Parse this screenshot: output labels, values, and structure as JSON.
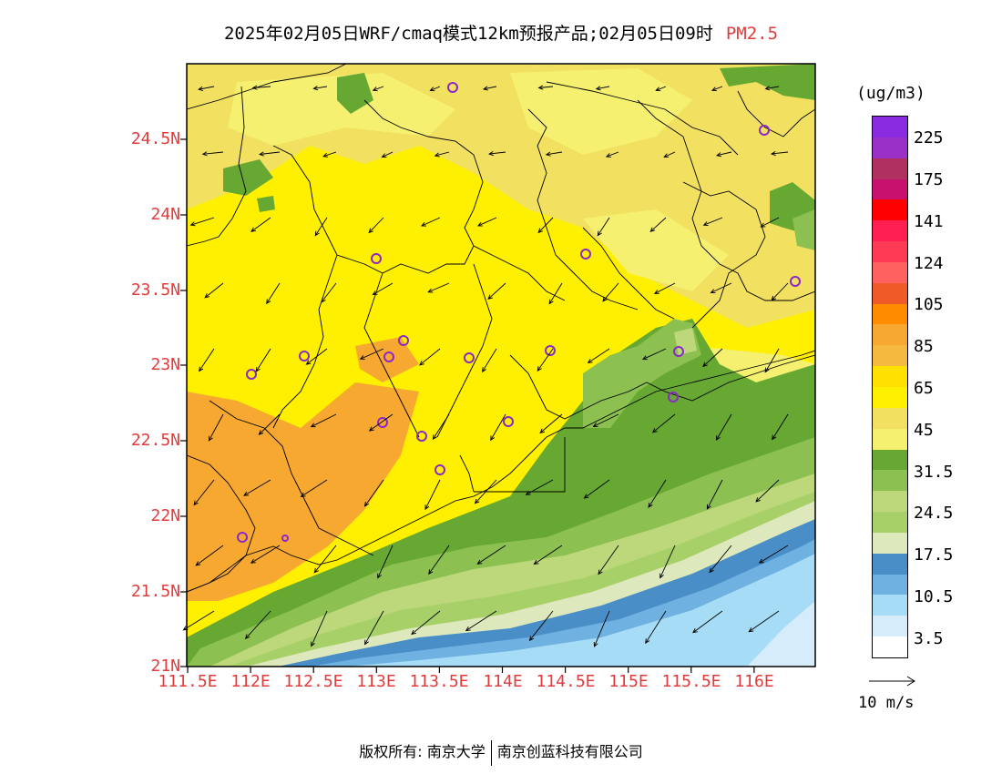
{
  "title": {
    "main": "2025年02月05日WRF/cmaq模式12km预报产品;02月05日09时",
    "pollutant": "PM2.5"
  },
  "map": {
    "lat_labels": [
      "24.5N",
      "24N",
      "23.5N",
      "23N",
      "22.5N",
      "22N",
      "21.5N",
      "21N"
    ],
    "lon_labels": [
      "111.5E",
      "112E",
      "112.5E",
      "113E",
      "113.5E",
      "114E",
      "114.5E",
      "115E",
      "115.5E",
      "116E"
    ],
    "lat_range": [
      21,
      24.95
    ],
    "lon_range": [
      111.5,
      116.45
    ]
  },
  "colorbar": {
    "units": "(ug/m3)",
    "labels": [
      "225",
      "175",
      "141",
      "124",
      "105",
      "85",
      "65",
      "45",
      "31.5",
      "24.5",
      "17.5",
      "10.5",
      "3.5"
    ],
    "colors_top_to_bottom": [
      "#8a2be2",
      "#9b30c8",
      "#b03060",
      "#c8106e",
      "#ff0000",
      "#ff1f50",
      "#ff3a55",
      "#ff6060",
      "#f05a28",
      "#ff8c00",
      "#f7a830",
      "#f5b940",
      "#ffe000",
      "#fff000",
      "#f2e060",
      "#f5f070",
      "#66a832",
      "#8cc050",
      "#bcd87a",
      "#a8d068",
      "#dde8bc",
      "#4a8ec8",
      "#6fb1e0",
      "#a6dcf5",
      "#d6ecfa",
      "#ffffff"
    ]
  },
  "reference_vector": {
    "label": "10 m/s"
  },
  "stations": 19,
  "copyright": {
    "prefix": "版权所有:",
    "org1": "南京大学",
    "org2": "南京创蓝科技有限公司"
  }
}
